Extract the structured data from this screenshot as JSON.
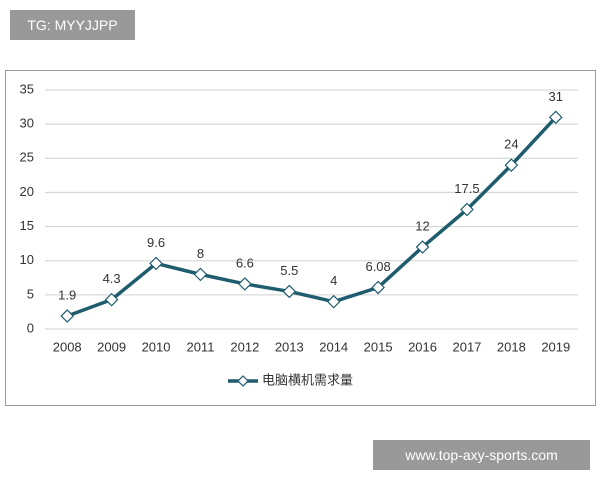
{
  "watermarks": [
    "TG: MYYJJPP",
    "www.top-axy-sports.com"
  ],
  "chart_data": {
    "type": "line",
    "categories": [
      "2008",
      "2009",
      "2010",
      "2011",
      "2012",
      "2013",
      "2014",
      "2015",
      "2016",
      "2017",
      "2018",
      "2019"
    ],
    "series": [
      {
        "name": "电脑横机需求量",
        "color": "#1f5c6e",
        "values": [
          1.9,
          4.3,
          9.6,
          8,
          6.6,
          5.5,
          4,
          6.08,
          12,
          17.5,
          24,
          31
        ]
      }
    ],
    "ylim": [
      0,
      35
    ],
    "yticks": [
      0,
      5,
      10,
      15,
      20,
      25,
      30,
      35
    ],
    "grid": true,
    "legend": "bottom"
  }
}
